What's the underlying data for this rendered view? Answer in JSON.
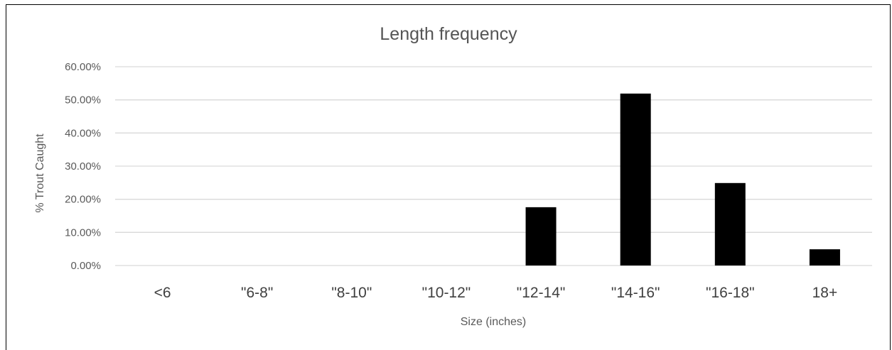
{
  "chart_data": {
    "type": "bar",
    "title": "Length frequency",
    "xlabel": "Size (inches)",
    "ylabel": "% Trout Caught",
    "categories": [
      "<6",
      "\"6-8\"",
      "\"8-10\"",
      "\"10-12\"",
      "\"12-14\"",
      "\"14-16\"",
      "\"16-18\"",
      "18+"
    ],
    "values": [
      0,
      0,
      0,
      0,
      17.6,
      51.9,
      24.9,
      4.9
    ],
    "y_ticks": [
      "0.00%",
      "10.00%",
      "20.00%",
      "30.00%",
      "40.00%",
      "50.00%",
      "60.00%"
    ],
    "ylim": [
      0,
      60
    ],
    "grid": true,
    "legend": "none",
    "colors": {
      "bar": "#000000",
      "grid": "#d9d9d9"
    }
  }
}
